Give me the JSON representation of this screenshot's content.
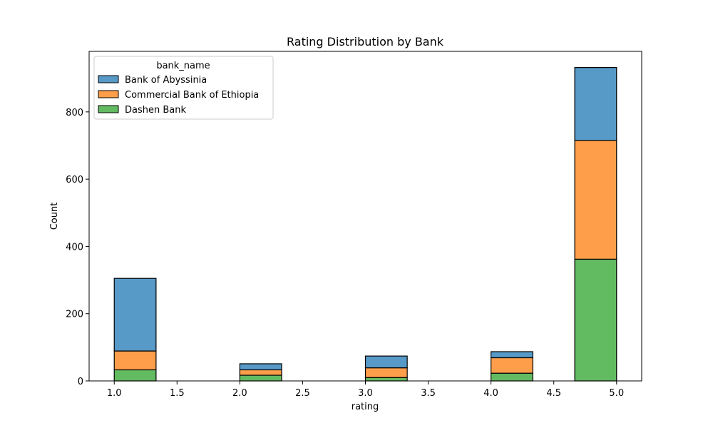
{
  "chart_data": {
    "type": "bar",
    "stacked": true,
    "title": "Rating Distribution by Bank",
    "xlabel": "rating",
    "ylabel": "Count",
    "xlim": [
      0.8,
      5.2
    ],
    "ylim": [
      0,
      980
    ],
    "xticks": [
      1.0,
      1.5,
      2.0,
      2.5,
      3.0,
      3.5,
      4.0,
      4.5,
      5.0
    ],
    "xtick_labels": [
      "1.0",
      "1.5",
      "2.0",
      "2.5",
      "3.0",
      "3.5",
      "4.0",
      "4.5",
      "5.0"
    ],
    "yticks": [
      0,
      200,
      400,
      600,
      800
    ],
    "ytick_labels": [
      "0",
      "200",
      "400",
      "600",
      "800"
    ],
    "bins": [
      [
        1.0,
        1.333
      ],
      [
        2.0,
        2.333
      ],
      [
        3.0,
        3.333
      ],
      [
        4.0,
        4.333
      ],
      [
        4.667,
        5.0
      ]
    ],
    "legend": {
      "title": "bank_name",
      "placement": "top-left"
    },
    "series": [
      {
        "name": "Dashen Bank",
        "color": "#63bb61",
        "values": [
          33,
          17,
          10,
          23,
          362
        ]
      },
      {
        "name": "Commercial Bank of Ethiopia",
        "color": "#fe9e4b",
        "values": [
          56,
          16,
          29,
          46,
          353
        ]
      },
      {
        "name": "Bank of Abyssinia",
        "color": "#5799c7",
        "values": [
          216,
          18,
          35,
          18,
          217
        ]
      }
    ],
    "legend_order": [
      "Bank of Abyssinia",
      "Commercial Bank of Ethiopia",
      "Dashen Bank"
    ],
    "grid": false
  }
}
